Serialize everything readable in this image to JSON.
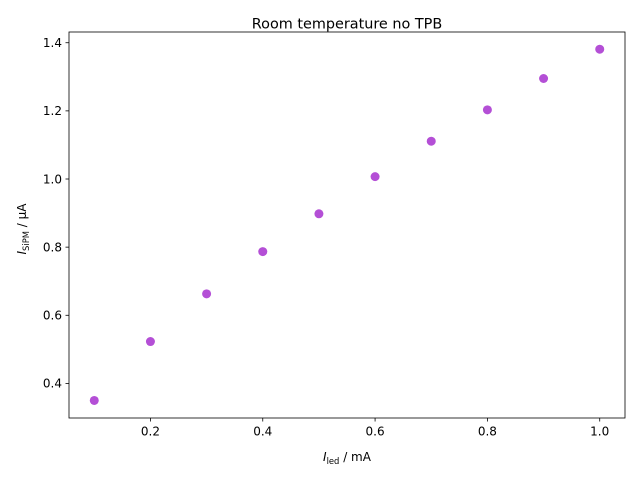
{
  "chart_data": {
    "type": "scatter",
    "title": "Room temperature no TPB",
    "xlabel": {
      "symbol": "I",
      "subscript": "led",
      "unit": " / mA"
    },
    "ylabel": {
      "symbol": "I",
      "subscript": "SiPM",
      "unit": " / μA"
    },
    "xlim": [
      0.055,
      1.045
    ],
    "ylim": [
      0.2985,
      1.4315
    ],
    "xticks": [
      0.2,
      0.4,
      0.6,
      0.8,
      1.0
    ],
    "xtick_labels": [
      "0.2",
      "0.4",
      "0.6",
      "0.8",
      "1.0"
    ],
    "yticks": [
      0.4,
      0.6,
      0.8,
      1.0,
      1.2,
      1.4
    ],
    "ytick_labels": [
      "0.4",
      "0.6",
      "0.8",
      "1.0",
      "1.2",
      "1.4"
    ],
    "grid": false,
    "marker_color": "#b44fd6",
    "points": [
      {
        "x": 0.1,
        "y": 0.35
      },
      {
        "x": 0.2,
        "y": 0.523
      },
      {
        "x": 0.3,
        "y": 0.663
      },
      {
        "x": 0.4,
        "y": 0.787
      },
      {
        "x": 0.5,
        "y": 0.898
      },
      {
        "x": 0.6,
        "y": 1.007
      },
      {
        "x": 0.7,
        "y": 1.111
      },
      {
        "x": 0.8,
        "y": 1.203
      },
      {
        "x": 0.9,
        "y": 1.295
      },
      {
        "x": 1.0,
        "y": 1.381
      }
    ]
  }
}
